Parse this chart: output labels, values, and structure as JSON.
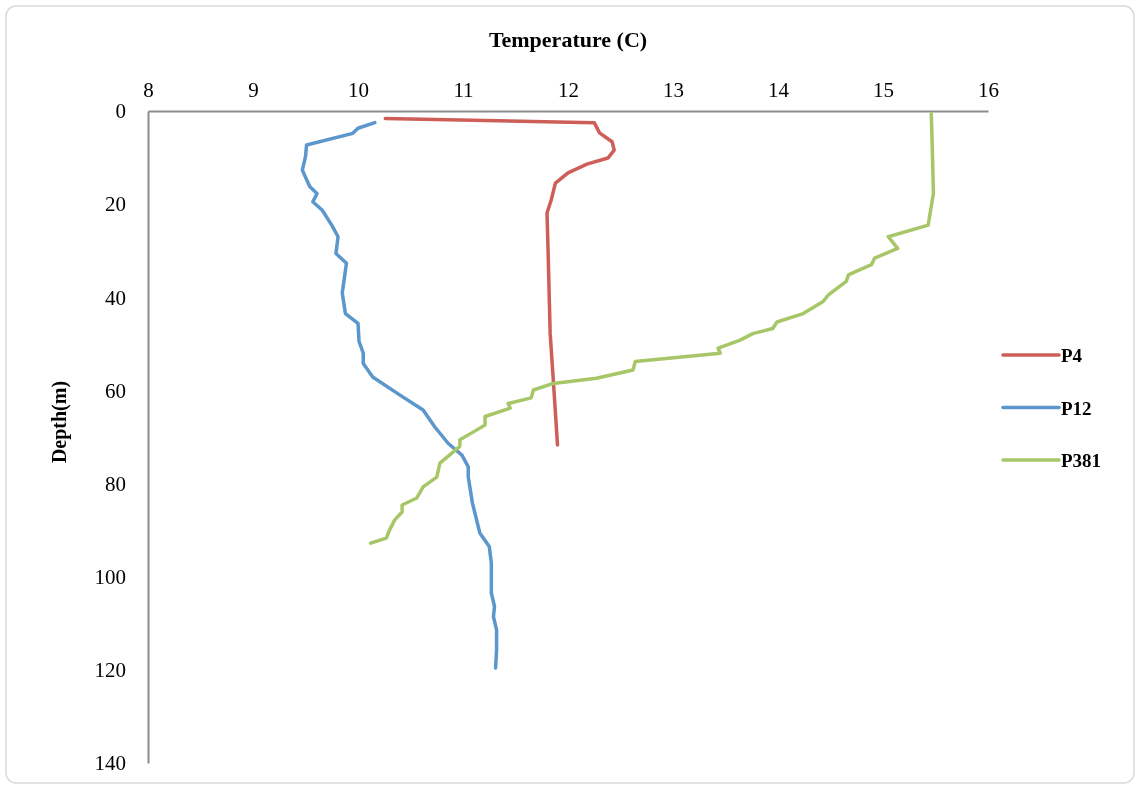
{
  "chart_data": {
    "type": "line",
    "xlabel": "Temperature (C)",
    "ylabel": "Depth(m)",
    "xlim": [
      8,
      16
    ],
    "xticks": [
      8,
      9,
      10,
      11,
      12,
      13,
      14,
      15,
      16
    ],
    "ylim": [
      140,
      0
    ],
    "yticks": [
      0,
      20,
      40,
      60,
      80,
      100,
      120,
      140
    ],
    "grid": false,
    "legend": "right",
    "marker": "none",
    "line_style": "solid",
    "series": [
      {
        "name": "P4",
        "color": "#cd5f58",
        "x": [
          10.26,
          12.25,
          12.3,
          12.42,
          12.44,
          12.38,
          12.18,
          12.0,
          11.88,
          11.84,
          11.8,
          11.81,
          11.83,
          11.86,
          11.9
        ],
        "values": [
          1.6,
          2.5,
          4.7,
          6.6,
          8.4,
          10.1,
          11.4,
          13.3,
          15.5,
          19.1,
          21.9,
          29.8,
          47.7,
          57.8,
          71.7
        ]
      },
      {
        "name": "P12",
        "color": "#5b96cc",
        "x": [
          10.16,
          10.0,
          9.95,
          9.51,
          9.5,
          9.47,
          9.54,
          9.61,
          9.57,
          9.66,
          9.75,
          9.81,
          9.79,
          9.89,
          9.85,
          9.88,
          10.0,
          10.01,
          10.05,
          10.05,
          10.14,
          10.4,
          10.62,
          10.73,
          10.86,
          10.99,
          11.05,
          11.05,
          11.09,
          11.16,
          11.25,
          11.27,
          11.27,
          11.3,
          11.29,
          11.32,
          11.32,
          11.31
        ],
        "values": [
          2.5,
          3.7,
          4.8,
          7.3,
          9.8,
          12.7,
          16.2,
          17.7,
          19.5,
          21.3,
          24.5,
          27.0,
          30.6,
          32.7,
          39.1,
          43.5,
          45.6,
          49.5,
          52.0,
          54.2,
          57.1,
          61.0,
          64.2,
          67.8,
          71.4,
          73.9,
          76.4,
          78.6,
          84.2,
          90.6,
          93.5,
          97.1,
          103.5,
          106.4,
          108.6,
          111.4,
          115.7,
          119.6
        ]
      },
      {
        "name": "P381",
        "color": "#a7c667",
        "x": [
          15.46,
          15.47,
          15.48,
          15.43,
          15.05,
          15.14,
          14.92,
          14.89,
          14.67,
          14.65,
          14.48,
          14.43,
          14.24,
          13.99,
          13.95,
          13.76,
          13.64,
          13.43,
          13.45,
          12.64,
          12.62,
          12.27,
          11.86,
          11.67,
          11.65,
          11.43,
          11.45,
          11.21,
          11.21,
          11.1,
          10.97,
          10.97,
          10.78,
          10.75,
          10.62,
          10.56,
          10.42,
          10.42,
          10.35,
          10.3,
          10.27,
          10.12
        ],
        "values": [
          0.6,
          8.4,
          17.7,
          24.5,
          27.0,
          29.5,
          31.6,
          33.0,
          35.2,
          36.6,
          39.5,
          40.9,
          43.5,
          45.3,
          46.7,
          47.8,
          49.2,
          50.9,
          52.0,
          53.8,
          55.6,
          57.4,
          58.5,
          59.9,
          61.6,
          62.8,
          63.8,
          65.6,
          67.4,
          68.9,
          70.6,
          72.0,
          75.6,
          78.6,
          80.7,
          83.1,
          84.6,
          86.1,
          87.8,
          90.0,
          91.7,
          92.8
        ]
      }
    ]
  }
}
